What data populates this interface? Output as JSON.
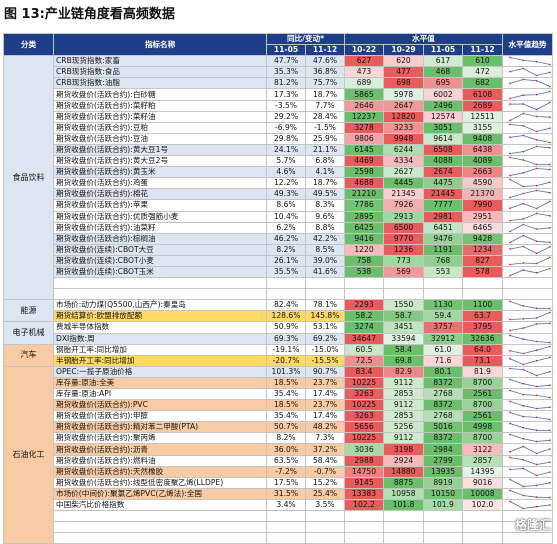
{
  "title": "图 13:产业链角度看高频数据",
  "header": {
    "category": "分类",
    "indicator": "指标名称",
    "change_group": "同比/变动*",
    "level_group": "水平值",
    "trend_group": "水平值趋势",
    "dates_change": [
      "11-05",
      "11-12"
    ],
    "dates_level": [
      "10-22",
      "10-29",
      "11-05",
      "11-12"
    ]
  },
  "colors": {
    "header_bg": "#1f3e8a",
    "light_blue": "#dce6f2",
    "orange": "#f8cba4",
    "yellow": "#ffd966",
    "level_red": "#e64a4a",
    "level_green": "#5bb85b",
    "spark_line": "#4a6fb0",
    "spark_dot": "#d62a2a"
  },
  "groups": [
    {
      "name": "食品饮料",
      "rows": 22,
      "color": "#dce6f2"
    },
    {
      "name": "能源",
      "rows": 2,
      "color": "#dce6f2"
    },
    {
      "name": "电子机械",
      "rows": 2,
      "color": "#dce6f2"
    },
    {
      "name": "汽车",
      "rows": 2,
      "color": "#f8cba4"
    },
    {
      "name": "石油化工",
      "rows": 16,
      "color": "#f8cba4"
    }
  ],
  "rows": [
    {
      "name": "CRB现货指数:家畜",
      "hl": "lb",
      "c1": "47.7%",
      "c2": "47.6%",
      "v": [
        "627",
        "620",
        "617",
        "610"
      ]
    },
    {
      "name": "CRB现货指数:食品",
      "hl": "lb",
      "c1": "35.3%",
      "c2": "36.8%",
      "v": [
        "473",
        "477",
        "468",
        "472"
      ]
    },
    {
      "name": "CRB现货指数:油脂",
      "hl": "lb",
      "c1": "81.2%",
      "c2": "75.7%",
      "v": [
        "689",
        "698",
        "695",
        "682"
      ]
    },
    {
      "name": "期货收盘价(活跃合约):白砂糖",
      "hl": "",
      "c1": "17.3%",
      "c2": "18.7%",
      "v": [
        "5865",
        "5978",
        "6002",
        "6108"
      ]
    },
    {
      "name": "期货收盘价(活跃合约):菜籽粕",
      "hl": "",
      "c1": "-3.5%",
      "c2": "7.7%",
      "v": [
        "2646",
        "2647",
        "2496",
        "2689"
      ]
    },
    {
      "name": "期货收盘价(活跃合约):菜籽油",
      "hl": "",
      "c1": "29.2%",
      "c2": "28.4%",
      "v": [
        "12237",
        "12820",
        "12574",
        "12511"
      ]
    },
    {
      "name": "期货收盘价(活跃合约):豆粕",
      "hl": "",
      "c1": "-6.9%",
      "c2": "-1.5%",
      "v": [
        "3278",
        "3233",
        "3051",
        "3155"
      ]
    },
    {
      "name": "期货收盘价(活跃合约):豆油",
      "hl": "",
      "c1": "29.8%",
      "c2": "25.9%",
      "v": [
        "9806",
        "9948",
        "9614",
        "9408"
      ]
    },
    {
      "name": "期货收盘价(活跃合约):黄大豆1号",
      "hl": "lb",
      "c1": "24.1%",
      "c2": "21.1%",
      "v": [
        "6145",
        "6244",
        "6508",
        "6438"
      ]
    },
    {
      "name": "期货收盘价(活跃合约):黄大豆2号",
      "hl": "",
      "c1": "5.7%",
      "c2": "6.8%",
      "v": [
        "4469",
        "4334",
        "4088",
        "4089"
      ]
    },
    {
      "name": "期货收盘价(活跃合约):黄玉米",
      "hl": "lb",
      "c1": "4.6%",
      "c2": "4.1%",
      "v": [
        "2598",
        "2627",
        "2674",
        "2663"
      ]
    },
    {
      "name": "期货收盘价(活跃合约):鸡蛋",
      "hl": "",
      "c1": "12.2%",
      "c2": "18.7%",
      "v": [
        "4688",
        "4445",
        "4475",
        "4590"
      ]
    },
    {
      "name": "期货收盘价(活跃合约):棉花",
      "hl": "lb",
      "c1": "49.3%",
      "c2": "49.5%",
      "v": [
        "21210",
        "21345",
        "21445",
        "21370"
      ]
    },
    {
      "name": "期货收盘价(活跃合约):苹果",
      "hl": "",
      "c1": "8.6%",
      "c2": "8.3%",
      "v": [
        "7786",
        "7926",
        "7777",
        "7990"
      ]
    },
    {
      "name": "期货收盘价(活跃合约):优质强筋小麦",
      "hl": "",
      "c1": "10.4%",
      "c2": "9.6%",
      "v": [
        "2895",
        "2913",
        "2981",
        "2951"
      ]
    },
    {
      "name": "期货收盘价(活跃合约):油菜籽",
      "hl": "",
      "c1": "6.2%",
      "c2": "8.8%",
      "v": [
        "6425",
        "6500",
        "6451",
        "6465"
      ]
    },
    {
      "name": "期货收盘价(活跃合约):棕榈油",
      "hl": "lb",
      "c1": "46.2%",
      "c2": "42.2%",
      "v": [
        "9416",
        "9770",
        "9476",
        "9428"
      ]
    },
    {
      "name": "期货收盘价(连续):CBOT大豆",
      "hl": "lb",
      "c1": "8.2%",
      "c2": "8.5%",
      "v": [
        "1220",
        "1236",
        "1191",
        "1234"
      ]
    },
    {
      "name": "期货收盘价(连续):CBOT小麦",
      "hl": "lb",
      "c1": "26.1%",
      "c2": "39.0%",
      "v": [
        "758",
        "773",
        "768",
        "827"
      ]
    },
    {
      "name": "期货收盘价(连续):CBOT玉米",
      "hl": "lb",
      "c1": "35.5%",
      "c2": "41.6%",
      "v": [
        "538",
        "569",
        "553",
        "578"
      ]
    },
    {
      "name": "",
      "hl": "",
      "c1": "",
      "c2": "",
      "v": [
        "",
        "",
        "",
        ""
      ]
    },
    {
      "name": "",
      "hl": "",
      "c1": "",
      "c2": "",
      "v": [
        "",
        "",
        "",
        ""
      ]
    },
    {
      "name": "市场价:动力煤(Q5500,山西产):秦皇岛",
      "hl": "",
      "c1": "82.4%",
      "c2": "78.1%",
      "v": [
        "2293",
        "1550",
        "1130",
        "1100"
      ]
    },
    {
      "name": "期货结算价:欧盟排放配额",
      "hl": "y",
      "c1": "128.6%",
      "c2": "145.8%",
      "v": [
        "58.2",
        "58.7",
        "59.4",
        "63.7"
      ]
    },
    {
      "name": "费城半导体指数",
      "hl": "",
      "c1": "50.9%",
      "c2": "53.1%",
      "v": [
        "3274",
        "3451",
        "3757",
        "3795"
      ]
    },
    {
      "name": "DXI指数:周",
      "hl": "lb",
      "c1": "69.3%",
      "c2": "69.2%",
      "v": [
        "34647",
        "33594",
        "32912",
        "32636"
      ]
    },
    {
      "name": "钢胎开工率:同比增加",
      "hl": "",
      "c1": "-19.1%",
      "c2": "-15.0%",
      "v": [
        "60.5",
        "58.4",
        "61.0",
        "64.0"
      ]
    },
    {
      "name": "半钢胎开工率:同比增加",
      "hl": "y",
      "c1": "-20.7%",
      "c2": "-15.5%",
      "v": [
        "72.5",
        "69.8",
        "71.6",
        "73.1"
      ]
    },
    {
      "name": "OPEC:一揽子原油价格",
      "hl": "lb",
      "c1": "101.3%",
      "c2": "90.7%",
      "v": [
        "83.4",
        "82.9",
        "80.1",
        "81.9"
      ]
    },
    {
      "name": "库存量:原油:全美",
      "hl": "o",
      "c1": "18.5%",
      "c2": "23.7%",
      "v": [
        "10225",
        "9112",
        "8372",
        "8700"
      ]
    },
    {
      "name": "库存量:原油:API",
      "hl": "",
      "c1": "35.4%",
      "c2": "17.4%",
      "v": [
        "3263",
        "2853",
        "2768",
        "2561"
      ]
    },
    {
      "name": "期货收盘价(活跃合约):PVC",
      "hl": "o",
      "c1": "18.5%",
      "c2": "23.7%",
      "v": [
        "10225",
        "9112",
        "8372",
        "8700"
      ]
    },
    {
      "name": "期货收盘价(活跃合约):甲醇",
      "hl": "",
      "c1": "35.4%",
      "c2": "17.4%",
      "v": [
        "3263",
        "2853",
        "2768",
        "2561"
      ]
    },
    {
      "name": "期货收盘价(活跃合约):精对苯二甲酸(PTA)",
      "hl": "o",
      "c1": "50.7%",
      "c2": "48.2%",
      "v": [
        "5656",
        "5256",
        "5016",
        "4998"
      ]
    },
    {
      "name": "期货收盘价(活跃合约):聚丙烯",
      "hl": "",
      "c1": "8.2%",
      "c2": "7.3%",
      "v": [
        "10225",
        "9112",
        "8372",
        "8700"
      ]
    },
    {
      "name": "期货收盘价(活跃合约):沥青",
      "hl": "o",
      "c1": "36.0%",
      "c2": "37.2%",
      "v": [
        "3036",
        "3198",
        "2984",
        "3122"
      ]
    },
    {
      "name": "期货收盘价(活跃合约):燃料油",
      "hl": "",
      "c1": "63.5%",
      "c2": "58.4%",
      "v": [
        "2988",
        "2924",
        "2799",
        "2857"
      ]
    },
    {
      "name": "期货收盘价(活跃合约):天然橡胶",
      "hl": "o",
      "c1": "-7.2%",
      "c2": "-0.7%",
      "v": [
        "14750",
        "14880",
        "13935",
        "14395"
      ]
    },
    {
      "name": "期货收盘价(活跃合约):线型低密度聚乙烯(LLDPE)",
      "hl": "",
      "c1": "17.5%",
      "c2": "15.2%",
      "v": [
        "9145",
        "8875",
        "8919",
        "9016"
      ]
    },
    {
      "name": "市场价(中间价):聚氯乙烯PVC(乙烯法):全国",
      "hl": "o",
      "c1": "31.5%",
      "c2": "25.4%",
      "v": [
        "13383",
        "10958",
        "10150",
        "10008"
      ]
    },
    {
      "name": "中国柴汽比价格指数",
      "hl": "",
      "c1": "3.4%",
      "c2": "3.5%",
      "v": [
        "102.2",
        "101.8",
        "101.9",
        "102.0"
      ]
    },
    {
      "name": "",
      "hl": "",
      "c1": "",
      "c2": "",
      "v": [
        "",
        "",
        "",
        ""
      ]
    },
    {
      "name": "",
      "hl": "",
      "c1": "",
      "c2": "",
      "v": [
        "",
        "",
        "",
        ""
      ]
    },
    {
      "name": "",
      "hl": "",
      "c1": "",
      "c2": "",
      "v": [
        "",
        "",
        "",
        ""
      ]
    }
  ],
  "watermark": "格隆汇"
}
